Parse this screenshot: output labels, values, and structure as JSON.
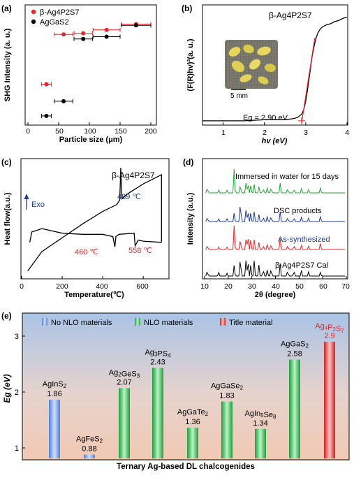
{
  "chart_data": [
    {
      "panel": "(a)",
      "type": "scatter",
      "xlabel": "Particle size (μm)",
      "ylabel": "SHG Intensity (a. u.)",
      "xlim": [
        0,
        210
      ],
      "xticks": [
        "0",
        "50",
        "100",
        "150",
        "200"
      ],
      "legend": "top-left",
      "series": [
        {
          "name": "β-Ag4P2S7",
          "color": "#e8232b",
          "points": [
            {
              "x": 30,
              "xerr": 8,
              "y": 0.33
            },
            {
              "x": 58,
              "xerr": 15,
              "y": 0.77
            },
            {
              "x": 90,
              "xerr": 15,
              "y": 0.78
            },
            {
              "x": 128,
              "xerr": 22,
              "y": 0.81
            },
            {
              "x": 176,
              "xerr": 24,
              "y": 0.86
            }
          ]
        },
        {
          "name": "AgGaS2",
          "color": "#000000",
          "points": [
            {
              "x": 30,
              "xerr": 8,
              "y": 0.05
            },
            {
              "x": 58,
              "xerr": 15,
              "y": 0.18
            },
            {
              "x": 90,
              "xerr": 15,
              "y": 0.73
            },
            {
              "x": 128,
              "xerr": 22,
              "y": 0.75
            },
            {
              "x": 176,
              "xerr": 24,
              "y": 0.85
            }
          ]
        }
      ]
    },
    {
      "panel": "(b)",
      "type": "line",
      "title": "β-Ag4P2S7",
      "xlabel": "hv (eV)",
      "ylabel": "(F(R)hv)²(a. u.)",
      "xlim": [
        0.5,
        4
      ],
      "xticks": [
        "1",
        "2",
        "3",
        "4"
      ],
      "annotation": "Eg = 2.90 eV",
      "inset_label": "5 mm",
      "series": [
        {
          "name": "",
          "color": "#000000",
          "x": [
            0.5,
            1.0,
            1.5,
            2.0,
            2.5,
            2.7,
            2.8,
            2.9,
            2.95,
            3.0,
            3.05,
            3.1,
            3.15,
            3.2,
            3.25,
            3.3,
            3.35,
            3.4,
            3.5,
            3.6,
            3.7,
            3.8,
            3.9,
            4.0
          ],
          "y": [
            0.02,
            0.02,
            0.02,
            0.03,
            0.03,
            0.04,
            0.05,
            0.08,
            0.12,
            0.2,
            0.32,
            0.46,
            0.6,
            0.7,
            0.78,
            0.83,
            0.86,
            0.88,
            0.9,
            0.91,
            0.93,
            0.94,
            0.96,
            0.97
          ]
        },
        {
          "name": "",
          "color": "#e8232b",
          "x": [
            2.9,
            3.22
          ],
          "y": [
            0.0,
            0.78
          ]
        }
      ]
    },
    {
      "panel": "(c)",
      "type": "line",
      "title": "β-Ag4P2S7",
      "xlabel": "Temperature(℃)",
      "ylabel": "Heat flow(a.u.)",
      "xlim": [
        0,
        720
      ],
      "xticks": [
        "0",
        "200",
        "400",
        "600"
      ],
      "arrow_label": "Exo",
      "annotations": [
        {
          "text": "489 ℃",
          "color": "#1f3a93"
        },
        {
          "text": "460 ℃",
          "color": "#e8232b"
        },
        {
          "text": "558 ℃",
          "color": "#e8232b"
        }
      ],
      "series": [
        {
          "name": "",
          "color": "#000000",
          "x": [
            30,
            100,
            200,
            300,
            400,
            470,
            484,
            489,
            495,
            520,
            600,
            690,
            690
          ],
          "y": [
            0.05,
            0.22,
            0.34,
            0.46,
            0.57,
            0.63,
            0.67,
            0.95,
            0.68,
            0.72,
            0.81,
            0.89,
            0.3
          ]
        },
        {
          "name": "",
          "color": "#000000",
          "x": [
            690,
            600,
            575,
            560,
            555,
            480,
            465,
            460,
            450,
            400,
            300,
            200,
            100,
            50,
            40
          ],
          "y": [
            0.3,
            0.31,
            0.32,
            0.27,
            0.38,
            0.37,
            0.35,
            0.26,
            0.35,
            0.37,
            0.37,
            0.38,
            0.42,
            0.39,
            0.3
          ]
        }
      ]
    },
    {
      "panel": "(d)",
      "type": "line",
      "xlabel": "2θ (degree)",
      "ylabel": "Intensity (a.u.)",
      "xlim": [
        10,
        70
      ],
      "xticks": [
        "10",
        "20",
        "30",
        "40",
        "50",
        "60",
        "70"
      ],
      "peaks_2theta": [
        11.2,
        15.9,
        19.5,
        22.6,
        25.2,
        27.5,
        28.3,
        29.6,
        31.0,
        33.0,
        34.8,
        36.6,
        38.2,
        42.0,
        45.2,
        47.8,
        51.0,
        54.0,
        59.1
      ],
      "series": [
        {
          "name": "β-Ag4P2S7 Cal",
          "color": "#000000",
          "intensities": [
            0.25,
            0.15,
            0.1,
            0.45,
            0.95,
            0.55,
            0.8,
            0.45,
            0.55,
            0.4,
            0.3,
            0.25,
            0.35,
            0.45,
            0.25,
            0.25,
            0.2,
            0.15,
            0.15
          ]
        },
        {
          "name": "As-synthesized",
          "color": "#e8232b",
          "intensities": [
            0.2,
            0.1,
            0.08,
            1.0,
            0.55,
            0.35,
            0.7,
            0.4,
            0.35,
            0.25,
            0.2,
            0.2,
            0.25,
            0.4,
            0.2,
            0.2,
            0.15,
            0.12,
            0.25
          ]
        },
        {
          "name": "DSC products",
          "color": "#1f3a93",
          "intensities": [
            0.2,
            0.1,
            0.1,
            0.35,
            1.0,
            0.4,
            0.55,
            0.35,
            0.35,
            0.25,
            0.22,
            0.2,
            0.25,
            0.35,
            0.2,
            0.18,
            0.15,
            0.12,
            0.2
          ]
        },
        {
          "name": "Immersed in water for 15 days",
          "color": "#22a636",
          "intensities": [
            0.25,
            0.12,
            0.1,
            1.0,
            0.4,
            0.35,
            0.5,
            0.3,
            0.3,
            0.22,
            0.2,
            0.2,
            0.25,
            0.35,
            0.2,
            0.18,
            0.15,
            0.12,
            0.2
          ]
        }
      ]
    },
    {
      "panel": "(e)",
      "type": "bar",
      "xlabel": "Ternary Ag-based DL chalcogenides",
      "ylabel": "Eg (eV)",
      "ylim": [
        0.8,
        3.2
      ],
      "yticks": [
        "1",
        "2",
        "3"
      ],
      "legend": [
        "No NLO materials",
        "NLO materials",
        "Title material"
      ],
      "categories": [
        "AgInS2",
        "AgFeS2",
        "Ag2GeS3",
        "Ag3PS4",
        "AgGaTe2",
        "AgGaSe2",
        "AgIn5Se8",
        "AgGaS2",
        "Ag4P2S7"
      ],
      "values": [
        1.86,
        0.88,
        2.07,
        2.43,
        1.36,
        1.83,
        1.34,
        2.58,
        2.9
      ],
      "value_labels": [
        "1.86",
        "0.88",
        "2.07",
        "2.43",
        "1.36",
        "1.83",
        "1.34",
        "2.58",
        "2.9"
      ],
      "groups": [
        "none",
        "none",
        "nlo",
        "nlo",
        "nlo",
        "nlo",
        "nlo",
        "nlo",
        "title"
      ],
      "colors": {
        "none": "#7aa6e8",
        "nlo": "#3fc45a",
        "title": "#ee3b3b",
        "title_label": "#e8232b"
      }
    }
  ]
}
